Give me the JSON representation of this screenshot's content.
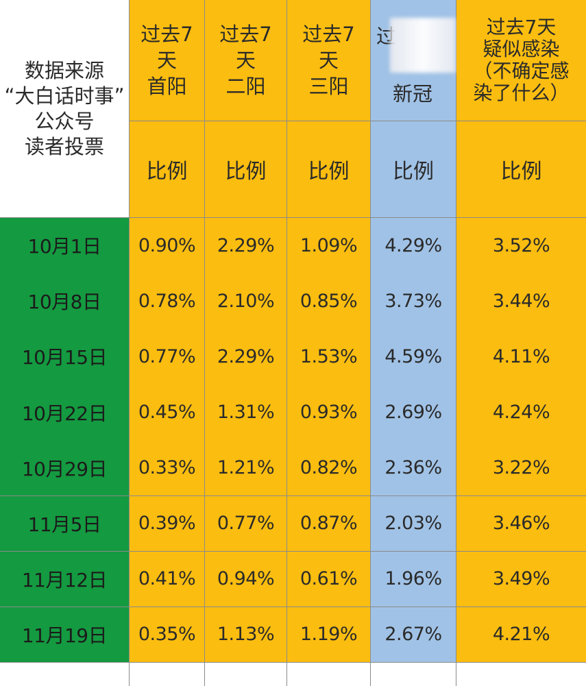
{
  "header": {
    "source_lines": [
      "数据来源",
      "“大白话时事”",
      "公众号",
      "读者投票"
    ],
    "columns": [
      {
        "lines": [
          "过去7",
          "天",
          "首阳"
        ]
      },
      {
        "lines": [
          "过去7",
          "天",
          "二阳"
        ]
      },
      {
        "lines": [
          "过去7",
          "天",
          "三阳"
        ]
      },
      {
        "lines": [
          "过",
          "新冠"
        ]
      },
      {
        "lines": [
          "过去7天",
          "疑似感染",
          "（不确定感",
          "染了什么）"
        ]
      }
    ],
    "ratio_label": "比例"
  },
  "rows": [
    {
      "date": "10月1日",
      "values": [
        "0.90%",
        "2.29%",
        "1.09%",
        "4.29%",
        "3.52%"
      ]
    },
    {
      "date": "10月8日",
      "values": [
        "0.78%",
        "2.10%",
        "0.85%",
        "3.73%",
        "3.44%"
      ]
    },
    {
      "date": "10月15日",
      "values": [
        "0.77%",
        "2.29%",
        "1.53%",
        "4.59%",
        "4.11%"
      ]
    },
    {
      "date": "10月22日",
      "values": [
        "0.45%",
        "1.31%",
        "0.93%",
        "2.69%",
        "4.24%"
      ]
    },
    {
      "date": "10月29日",
      "values": [
        "0.33%",
        "1.21%",
        "0.82%",
        "2.36%",
        "3.22%"
      ]
    },
    {
      "date": "11月5日",
      "values": [
        "0.39%",
        "0.77%",
        "0.87%",
        "2.03%",
        "3.46%"
      ]
    },
    {
      "date": "11月12日",
      "values": [
        "0.41%",
        "0.94%",
        "0.61%",
        "1.96%",
        "3.49%"
      ]
    },
    {
      "date": "11月19日",
      "values": [
        "0.35%",
        "1.13%",
        "1.19%",
        "2.67%",
        "4.21%"
      ]
    }
  ],
  "colors": {
    "yellow": "#fbbd0f",
    "blue": "#a0c2e6",
    "green": "#149a40"
  }
}
